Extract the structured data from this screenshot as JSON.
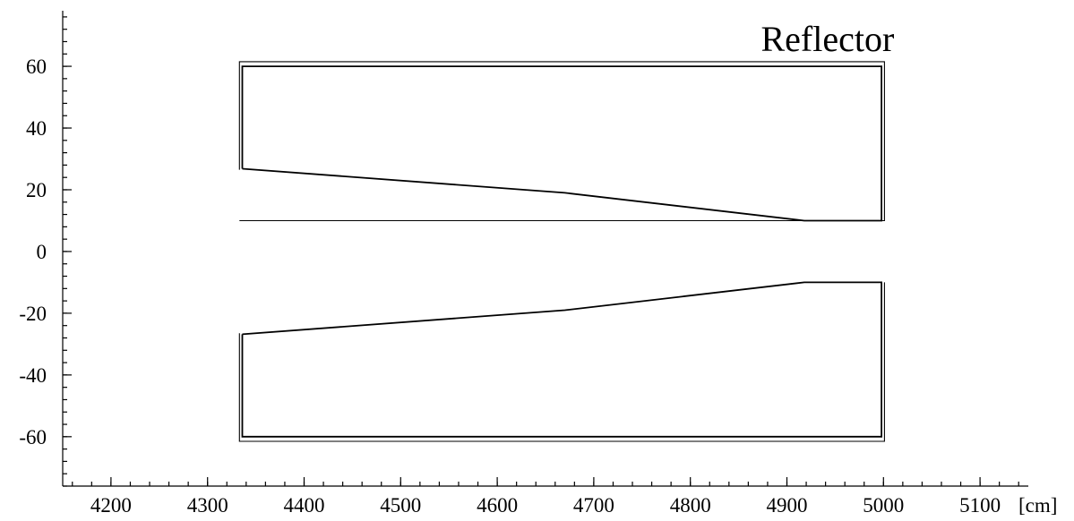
{
  "chart_data": {
    "type": "line",
    "title": "",
    "xlabel": "",
    "ylabel": "",
    "x_unit_label": "[cm]",
    "xlim": [
      4150,
      5150
    ],
    "ylim": [
      -76,
      78
    ],
    "x_ticks": [
      4200,
      4300,
      4400,
      4500,
      4600,
      4700,
      4800,
      4900,
      5000,
      5100
    ],
    "y_ticks": [
      60,
      40,
      20,
      0,
      -20,
      -40,
      -60
    ],
    "x_minor_step": 20,
    "y_minor_step": 4,
    "grid": false,
    "legend": "none",
    "annotations": [
      {
        "text": "Reflector",
        "x": 5000,
        "y": 65,
        "anchor": "end"
      }
    ],
    "series": [
      {
        "part": "upper-outer",
        "x": [
          4333,
          4333,
          5001,
          5001,
          4333
        ],
        "y": [
          26.5,
          61.5,
          61.5,
          10,
          10
        ]
      },
      {
        "part": "upper-inner",
        "x": [
          4336,
          4336,
          4998,
          4998,
          4918,
          4670,
          4336
        ],
        "y": [
          26.8,
          60,
          60,
          10,
          10,
          19,
          26.8
        ]
      },
      {
        "part": "lower-outer",
        "x": [
          4333,
          4333,
          5001,
          5001
        ],
        "y": [
          -26.5,
          -61.5,
          -61.5,
          -10
        ]
      },
      {
        "part": "lower-inner",
        "x": [
          4336,
          4336,
          4998,
          4998,
          4918,
          4670,
          4336
        ],
        "y": [
          -26.8,
          -60,
          -60,
          -10,
          -10,
          -19,
          -26.8
        ]
      }
    ]
  }
}
